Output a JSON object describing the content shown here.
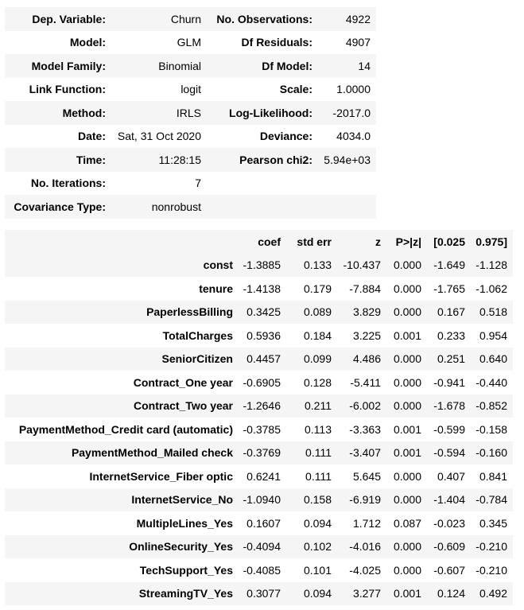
{
  "info_table": {
    "rows": [
      [
        "Dep. Variable:",
        "Churn",
        "No. Observations:",
        "4922"
      ],
      [
        "Model:",
        "GLM",
        "Df Residuals:",
        "4907"
      ],
      [
        "Model Family:",
        "Binomial",
        "Df Model:",
        "14"
      ],
      [
        "Link Function:",
        "logit",
        "Scale:",
        "1.0000"
      ],
      [
        "Method:",
        "IRLS",
        "Log-Likelihood:",
        "-2017.0"
      ],
      [
        "Date:",
        "Sat, 31 Oct 2020",
        "Deviance:",
        "4034.0"
      ],
      [
        "Time:",
        "11:28:15",
        "Pearson chi2:",
        "5.94e+03"
      ],
      [
        "No. Iterations:",
        "7",
        "",
        ""
      ],
      [
        "Covariance Type:",
        "nonrobust",
        "",
        ""
      ]
    ]
  },
  "coef_table": {
    "headers": [
      "",
      "coef",
      "std err",
      "z",
      "P>|z|",
      "[0.025",
      "0.975]"
    ],
    "rows": [
      [
        "const",
        "-1.3885",
        "0.133",
        "-10.437",
        "0.000",
        "-1.649",
        "-1.128"
      ],
      [
        "tenure",
        "-1.4138",
        "0.179",
        "-7.884",
        "0.000",
        "-1.765",
        "-1.062"
      ],
      [
        "PaperlessBilling",
        "0.3425",
        "0.089",
        "3.829",
        "0.000",
        "0.167",
        "0.518"
      ],
      [
        "TotalCharges",
        "0.5936",
        "0.184",
        "3.225",
        "0.001",
        "0.233",
        "0.954"
      ],
      [
        "SeniorCitizen",
        "0.4457",
        "0.099",
        "4.486",
        "0.000",
        "0.251",
        "0.640"
      ],
      [
        "Contract_One year",
        "-0.6905",
        "0.128",
        "-5.411",
        "0.000",
        "-0.941",
        "-0.440"
      ],
      [
        "Contract_Two year",
        "-1.2646",
        "0.211",
        "-6.002",
        "0.000",
        "-1.678",
        "-0.852"
      ],
      [
        "PaymentMethod_Credit card (automatic)",
        "-0.3785",
        "0.113",
        "-3.363",
        "0.001",
        "-0.599",
        "-0.158"
      ],
      [
        "PaymentMethod_Mailed check",
        "-0.3769",
        "0.111",
        "-3.407",
        "0.001",
        "-0.594",
        "-0.160"
      ],
      [
        "InternetService_Fiber optic",
        "0.6241",
        "0.111",
        "5.645",
        "0.000",
        "0.407",
        "0.841"
      ],
      [
        "InternetService_No",
        "-1.0940",
        "0.158",
        "-6.919",
        "0.000",
        "-1.404",
        "-0.784"
      ],
      [
        "MultipleLines_Yes",
        "0.1607",
        "0.094",
        "1.712",
        "0.087",
        "-0.023",
        "0.345"
      ],
      [
        "OnlineSecurity_Yes",
        "-0.4094",
        "0.102",
        "-4.016",
        "0.000",
        "-0.609",
        "-0.210"
      ],
      [
        "TechSupport_Yes",
        "-0.4085",
        "0.101",
        "-4.025",
        "0.000",
        "-0.607",
        "-0.210"
      ],
      [
        "StreamingTV_Yes",
        "0.3077",
        "0.094",
        "3.277",
        "0.001",
        "0.124",
        "0.492"
      ]
    ]
  }
}
